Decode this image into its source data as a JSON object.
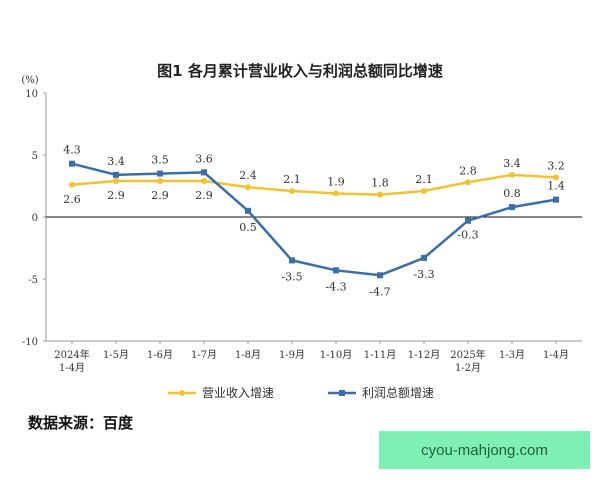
{
  "chart_data": {
    "type": "line",
    "title": "图1 各月累计营业收入与利润总额同比增速",
    "ylabel": "(%)",
    "ylim": [
      -10,
      10
    ],
    "yticks": [
      10,
      5,
      0,
      -5,
      -10
    ],
    "categories": [
      [
        "2024年",
        "1-4月"
      ],
      [
        "1-5月"
      ],
      [
        "1-6月"
      ],
      [
        "1-7月"
      ],
      [
        "1-8月"
      ],
      [
        "1-9月"
      ],
      [
        "1-10月"
      ],
      [
        "1-11月"
      ],
      [
        "1-12月"
      ],
      [
        "2025年",
        "1-2月"
      ],
      [
        "1-3月"
      ],
      [
        "1-4月"
      ]
    ],
    "series": [
      {
        "name": "营业收入增速",
        "color": "#f1c232",
        "values": [
          2.6,
          2.9,
          2.9,
          2.9,
          2.4,
          2.1,
          1.9,
          1.8,
          2.1,
          2.8,
          3.4,
          3.2
        ],
        "labels": [
          "2.6",
          "2.9",
          "2.9",
          "2.9",
          "2.4",
          "2.1",
          "1.9",
          "1.8",
          "2.1",
          "2.8",
          "3.4",
          "3.2"
        ]
      },
      {
        "name": "利润总额增速",
        "color": "#3a6ea8",
        "values": [
          4.3,
          3.4,
          3.5,
          3.6,
          0.5,
          -3.5,
          -4.3,
          -4.7,
          -3.3,
          -0.3,
          0.8,
          1.4
        ],
        "labels": [
          "4.3",
          "3.4",
          "3.5",
          "3.6",
          "0.5",
          "-3.5",
          "-4.3",
          "-4.7",
          "-3.3",
          "-0.3",
          "0.8",
          "1.4"
        ]
      }
    ],
    "grid": false,
    "legend": "bottom"
  },
  "source": "数据来源：百度",
  "watermark": "cyou-mahjong.com"
}
